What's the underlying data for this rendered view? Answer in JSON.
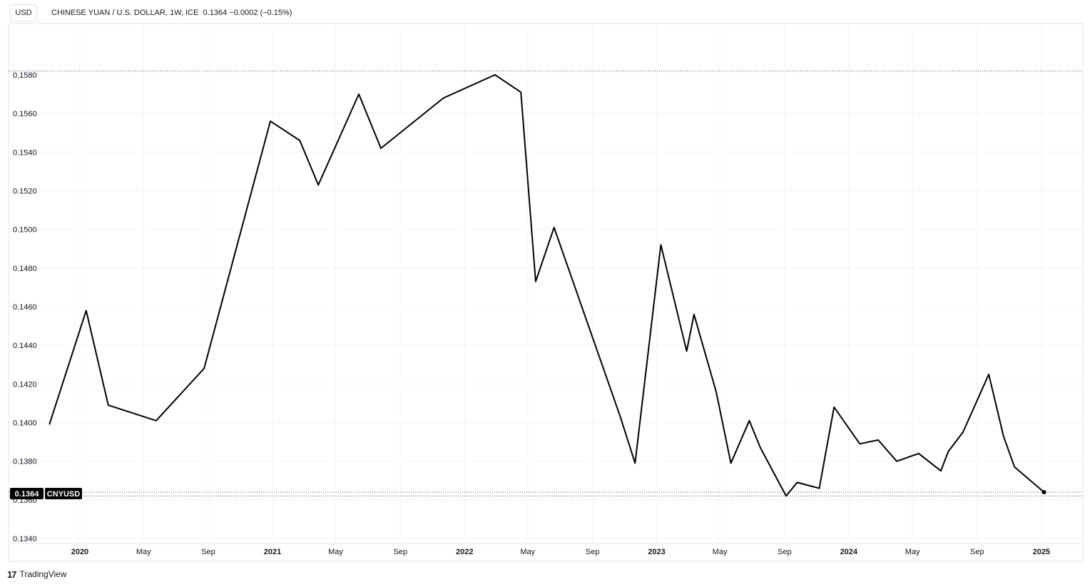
{
  "header": {
    "currency_button": "USD",
    "title": "CHINESE YUAN / U.S. DOLLAR",
    "interval": "1W",
    "exchange": "ICE",
    "last_price": "0.1364",
    "change": "−0.0002",
    "change_pct": "(−0.15%)"
  },
  "price_label": {
    "value": "0.1364",
    "symbol": "CNYUSD"
  },
  "footer": {
    "logo_glyph": "17",
    "brand": "TradingView"
  },
  "chart_data": {
    "type": "line",
    "series": [
      {
        "x": [
          "2019-11-04",
          "2020-01-13",
          "2020-02-24",
          "2020-05-25",
          "2020-08-24",
          "2020-12-28",
          "2021-02-22",
          "2021-03-29",
          "2021-06-14",
          "2021-07-26",
          "2021-11-22",
          "2022-02-28",
          "2022-04-18",
          "2022-05-16",
          "2022-06-20",
          "2022-10-24",
          "2022-11-21",
          "2023-01-09",
          "2023-02-27",
          "2023-03-13",
          "2023-04-24",
          "2023-05-22",
          "2023-06-26",
          "2023-07-17",
          "2023-09-04",
          "2023-09-25",
          "2023-11-06",
          "2023-12-04",
          "2024-01-22",
          "2024-02-26",
          "2024-04-01",
          "2024-05-13",
          "2024-06-24",
          "2024-07-08",
          "2024-08-05",
          "2024-09-23",
          "2024-10-21",
          "2024-11-11",
          "2025-01-06"
        ],
        "y": [
          0.1399,
          0.1458,
          0.1409,
          0.1401,
          0.1428,
          0.1556,
          0.1546,
          0.1523,
          0.157,
          0.1542,
          0.1568,
          0.158,
          0.1571,
          0.1473,
          0.1501,
          0.1403,
          0.1379,
          0.1492,
          0.1437,
          0.1456,
          0.1416,
          0.1379,
          0.1401,
          0.1387,
          0.1362,
          0.1369,
          0.1366,
          0.1408,
          0.1389,
          0.1391,
          0.138,
          0.1384,
          0.1375,
          0.1385,
          0.1395,
          0.1425,
          0.1393,
          0.1377,
          0.1364
        ]
      }
    ],
    "ylim": [
      0.134,
      0.1594
    ],
    "yticks": [
      "0.1580",
      "0.1560",
      "0.1540",
      "0.1520",
      "0.1500",
      "0.1480",
      "0.1460",
      "0.1440",
      "0.1420",
      "0.1400",
      "0.1380",
      "0.1360",
      "0.1340"
    ],
    "xlim": [
      "2019-10-28",
      "2025-03-10"
    ],
    "xticks": [
      {
        "date": "2020-01-01",
        "label": "2020",
        "major": true
      },
      {
        "date": "2020-05-01",
        "label": "May",
        "major": false
      },
      {
        "date": "2020-09-01",
        "label": "Sep",
        "major": false
      },
      {
        "date": "2021-01-01",
        "label": "2021",
        "major": true
      },
      {
        "date": "2021-05-01",
        "label": "May",
        "major": false
      },
      {
        "date": "2021-09-01",
        "label": "Sep",
        "major": false
      },
      {
        "date": "2022-01-01",
        "label": "2022",
        "major": true
      },
      {
        "date": "2022-05-01",
        "label": "May",
        "major": false
      },
      {
        "date": "2022-09-01",
        "label": "Sep",
        "major": false
      },
      {
        "date": "2023-01-01",
        "label": "2023",
        "major": true
      },
      {
        "date": "2023-05-01",
        "label": "May",
        "major": false
      },
      {
        "date": "2023-09-01",
        "label": "Sep",
        "major": false
      },
      {
        "date": "2024-01-01",
        "label": "2024",
        "major": true
      },
      {
        "date": "2024-05-01",
        "label": "May",
        "major": false
      },
      {
        "date": "2024-09-01",
        "label": "Sep",
        "major": false
      },
      {
        "date": "2025-01-01",
        "label": "2025",
        "major": true
      }
    ],
    "reference_lines": [
      0.1582,
      0.1364,
      0.1362
    ],
    "grid": true,
    "line_color": "#000000"
  }
}
